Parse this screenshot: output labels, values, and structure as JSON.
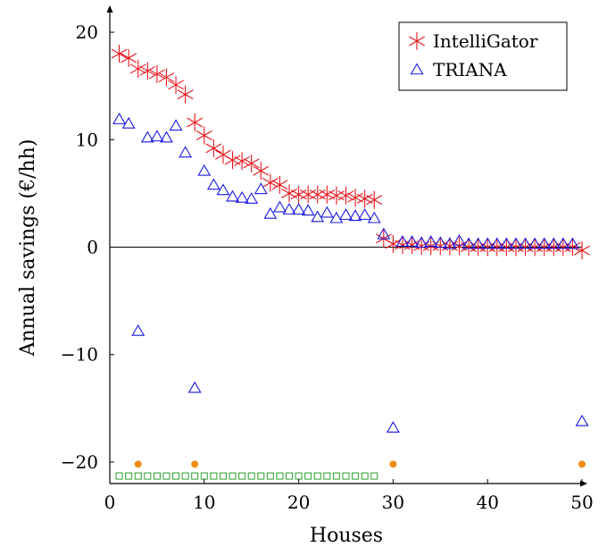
{
  "chart_data": {
    "type": "scatter",
    "xlabel": "Houses",
    "ylabel": "Annual savings (€/hh)",
    "xlim": [
      0,
      50
    ],
    "ylim": [
      -22,
      22
    ],
    "x_ticks": [
      "0",
      "10",
      "20",
      "30",
      "40",
      "50"
    ],
    "y_ticks": [
      "20",
      "10",
      "0",
      "−10",
      "−20"
    ],
    "grid": false,
    "legend_position": "top-right",
    "series": [
      {
        "name": "IntelliGator",
        "marker": "asterisk",
        "color": "#e8141b",
        "points": [
          [
            1,
            18.0
          ],
          [
            2,
            17.6
          ],
          [
            3,
            16.6
          ],
          [
            4,
            16.4
          ],
          [
            5,
            16.1
          ],
          [
            6,
            15.8
          ],
          [
            7,
            15.1
          ],
          [
            8,
            14.2
          ],
          [
            9,
            11.6
          ],
          [
            10,
            10.4
          ],
          [
            11,
            9.2
          ],
          [
            12,
            8.6
          ],
          [
            13,
            8.1
          ],
          [
            14,
            8.0
          ],
          [
            15,
            7.8
          ],
          [
            16,
            7.1
          ],
          [
            17,
            6.0
          ],
          [
            18,
            5.8
          ],
          [
            19,
            5.0
          ],
          [
            20,
            4.9
          ],
          [
            21,
            4.9
          ],
          [
            22,
            4.9
          ],
          [
            23,
            4.9
          ],
          [
            24,
            4.8
          ],
          [
            25,
            4.8
          ],
          [
            26,
            4.6
          ],
          [
            27,
            4.5
          ],
          [
            28,
            4.4
          ],
          [
            29,
            0.8
          ],
          [
            30,
            0.3
          ],
          [
            31,
            0.2
          ],
          [
            32,
            0.2
          ],
          [
            33,
            0.1
          ],
          [
            34,
            0.1
          ],
          [
            35,
            0.1
          ],
          [
            36,
            0.1
          ],
          [
            37,
            0.1
          ],
          [
            38,
            0.0
          ],
          [
            39,
            0.0
          ],
          [
            40,
            0.0
          ],
          [
            41,
            0.0
          ],
          [
            42,
            0.0
          ],
          [
            43,
            0.0
          ],
          [
            44,
            0.0
          ],
          [
            45,
            0.0
          ],
          [
            46,
            0.0
          ],
          [
            47,
            0.0
          ],
          [
            48,
            0.0
          ],
          [
            49,
            0.0
          ],
          [
            50,
            -0.3
          ]
        ]
      },
      {
        "name": "TRIANA",
        "marker": "triangle",
        "color": "#1a1ae0",
        "points": [
          [
            1,
            11.8
          ],
          [
            2,
            11.4
          ],
          [
            3,
            -7.9
          ],
          [
            4,
            10.1
          ],
          [
            5,
            10.2
          ],
          [
            6,
            10.1
          ],
          [
            7,
            11.2
          ],
          [
            8,
            8.7
          ],
          [
            9,
            -13.2
          ],
          [
            10,
            7.0
          ],
          [
            11,
            5.7
          ],
          [
            12,
            5.2
          ],
          [
            13,
            4.6
          ],
          [
            14,
            4.5
          ],
          [
            15,
            4.4
          ],
          [
            16,
            5.3
          ],
          [
            17,
            3.0
          ],
          [
            18,
            3.6
          ],
          [
            19,
            3.4
          ],
          [
            20,
            3.4
          ],
          [
            21,
            3.3
          ],
          [
            22,
            2.7
          ],
          [
            23,
            3.1
          ],
          [
            24,
            2.6
          ],
          [
            25,
            2.9
          ],
          [
            26,
            2.8
          ],
          [
            27,
            2.9
          ],
          [
            28,
            2.6
          ],
          [
            29,
            1.1
          ],
          [
            30,
            -16.9
          ],
          [
            31,
            0.4
          ],
          [
            32,
            0.4
          ],
          [
            33,
            0.3
          ],
          [
            34,
            0.4
          ],
          [
            35,
            0.3
          ],
          [
            36,
            0.2
          ],
          [
            37,
            0.5
          ],
          [
            38,
            0.2
          ],
          [
            39,
            0.2
          ],
          [
            40,
            0.2
          ],
          [
            41,
            0.2
          ],
          [
            42,
            0.2
          ],
          [
            43,
            0.2
          ],
          [
            44,
            0.2
          ],
          [
            45,
            0.2
          ],
          [
            46,
            0.2
          ],
          [
            47,
            0.2
          ],
          [
            48,
            0.2
          ],
          [
            49,
            0.2
          ],
          [
            50,
            -16.3
          ]
        ]
      },
      {
        "marker": "circle",
        "color": "#f28c13",
        "points": [
          [
            3,
            -20.2
          ],
          [
            9,
            -20.2
          ],
          [
            30,
            -20.2
          ],
          [
            50,
            -20.2
          ]
        ]
      },
      {
        "marker": "square",
        "color": "#2ca02c",
        "points": [
          [
            1,
            -21.3
          ],
          [
            2,
            -21.3
          ],
          [
            3,
            -21.3
          ],
          [
            4,
            -21.3
          ],
          [
            5,
            -21.3
          ],
          [
            6,
            -21.3
          ],
          [
            7,
            -21.3
          ],
          [
            8,
            -21.3
          ],
          [
            9,
            -21.3
          ],
          [
            10,
            -21.3
          ],
          [
            11,
            -21.3
          ],
          [
            12,
            -21.3
          ],
          [
            13,
            -21.3
          ],
          [
            14,
            -21.3
          ],
          [
            15,
            -21.3
          ],
          [
            16,
            -21.3
          ],
          [
            17,
            -21.3
          ],
          [
            18,
            -21.3
          ],
          [
            19,
            -21.3
          ],
          [
            20,
            -21.3
          ],
          [
            21,
            -21.3
          ],
          [
            22,
            -21.3
          ],
          [
            23,
            -21.3
          ],
          [
            24,
            -21.3
          ],
          [
            25,
            -21.3
          ],
          [
            26,
            -21.3
          ],
          [
            27,
            -21.3
          ],
          [
            28,
            -21.3
          ]
        ]
      }
    ]
  }
}
